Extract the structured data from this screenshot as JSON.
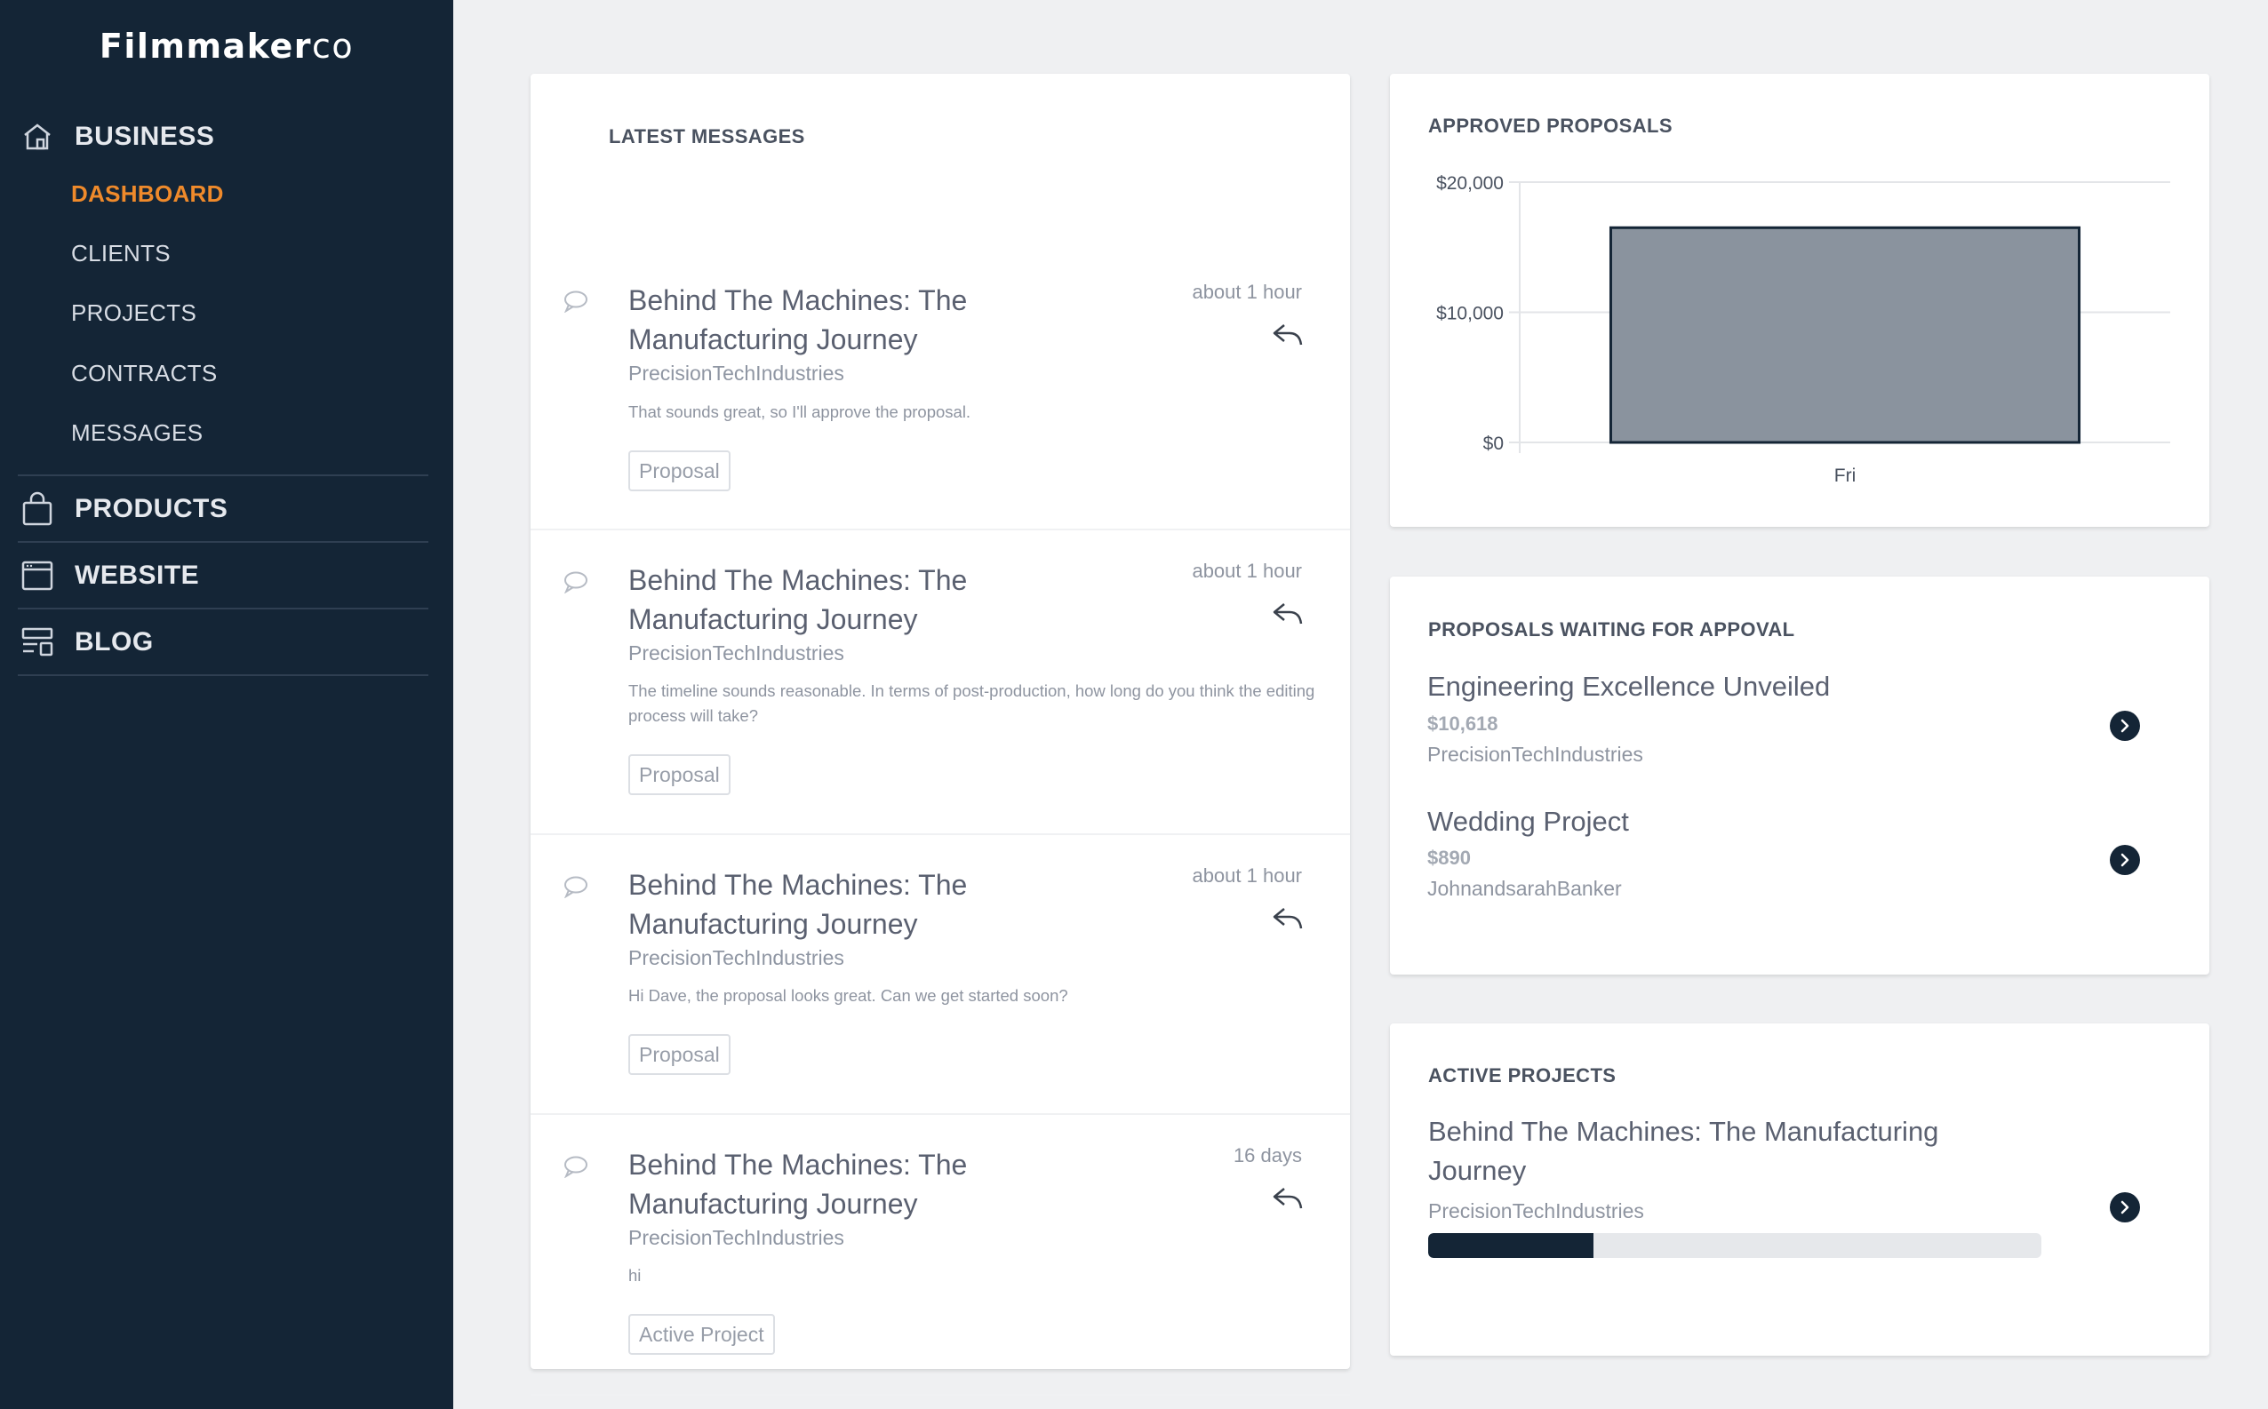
{
  "app": {
    "brand_bold": "Filmmaker",
    "brand_light": "co"
  },
  "sidebar": {
    "business": {
      "label": "BUSINESS",
      "icon": "home-icon"
    },
    "items": [
      {
        "label": "DASHBOARD",
        "active": true
      },
      {
        "label": "CLIENTS"
      },
      {
        "label": "PROJECTS"
      },
      {
        "label": "CONTRACTS"
      },
      {
        "label": "MESSAGES"
      }
    ],
    "products": {
      "label": "PRODUCTS",
      "icon": "shopping-bag-icon"
    },
    "website": {
      "label": "WEBSITE",
      "icon": "browser-window-icon"
    },
    "blog": {
      "label": "BLOG",
      "icon": "layout-icon"
    }
  },
  "messages": {
    "title": "LATEST MESSAGES",
    "items": [
      {
        "title": "Behind The Machines: The Manufacturing Journey",
        "client": "PrecisionTechIndustries",
        "text": "That sounds great, so I'll approve the proposal.",
        "tag": "Proposal",
        "time": "about 1 hour"
      },
      {
        "title": "Behind The Machines: The Manufacturing Journey",
        "client": "PrecisionTechIndustries",
        "text": "The timeline sounds reasonable. In terms of post-production, how long do you think the editing process will take?",
        "tag": "Proposal",
        "time": "about 1 hour"
      },
      {
        "title": "Behind The Machines: The Manufacturing Journey",
        "client": "PrecisionTechIndustries",
        "text": "Hi Dave, the proposal looks great. Can we get started soon?",
        "tag": "Proposal",
        "time": "about 1 hour"
      },
      {
        "title": "Behind The Machines: The Manufacturing Journey",
        "client": "PrecisionTechIndustries",
        "text": "hi",
        "tag": "Active Project",
        "time": "16 days"
      }
    ]
  },
  "approved": {
    "title": "APPROVED PROPOSALS",
    "chart_data": {
      "type": "bar",
      "categories": [
        "Fri"
      ],
      "values": [
        16500
      ],
      "ylim": [
        0,
        20000
      ],
      "yticks": [
        {
          "value": 0,
          "label": "$0"
        },
        {
          "value": 10000,
          "label": "$10,000"
        },
        {
          "value": 20000,
          "label": "$20,000"
        }
      ],
      "grid": true,
      "bar_color": "#8a939e",
      "bar_edge": "#142536"
    }
  },
  "waiting": {
    "title": "PROPOSALS WAITING FOR APPOVAL",
    "items": [
      {
        "title": "Engineering Excellence Unveiled",
        "amount": "$10,618",
        "client": "PrecisionTechIndustries"
      },
      {
        "title": "Wedding Project",
        "amount": "$890",
        "client": "JohnandsarahBanker"
      }
    ]
  },
  "active": {
    "title": "ACTIVE PROJECTS",
    "items": [
      {
        "title": "Behind The Machines: The Manufacturing Journey",
        "client": "PrecisionTechIndustries",
        "progress": 0.27
      }
    ]
  }
}
